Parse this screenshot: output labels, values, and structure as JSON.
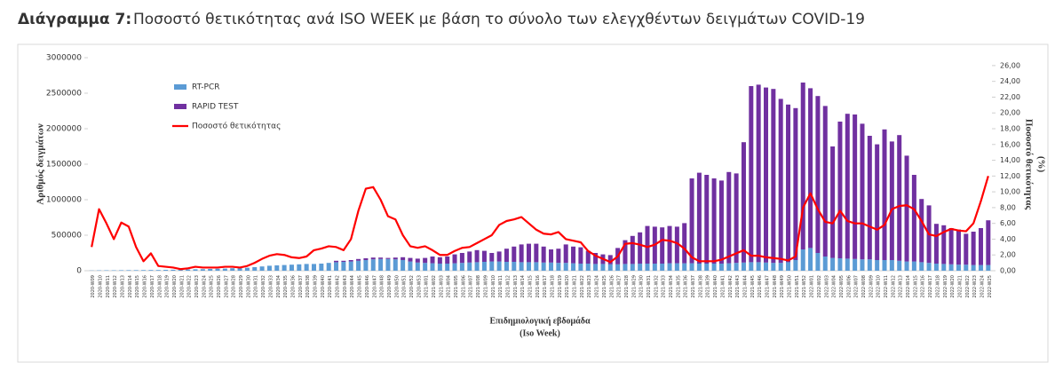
{
  "chart_data": {
    "type": "bar",
    "stacked": true,
    "title_label": "Διάγραμμα 7:",
    "title": "Ποσοστό θετικότητας ανά ISO WEEK με βάση το σύνολο των ελεγχθέντων δειγμάτων COVID-19",
    "ylabel": "Αριθμός δειγμάτων",
    "y2label": [
      "Ποσοστό θετικότητας",
      "(%)"
    ],
    "xlabel": [
      "Επιδημιολογική εβδομάδα",
      "(Iso Week)"
    ],
    "legend": "upper left",
    "ylim": [
      0,
      3000000
    ],
    "yticks": [
      0,
      500000,
      1000000,
      1500000,
      2000000,
      2500000,
      3000000
    ],
    "y2lim": [
      0,
      27
    ],
    "y2ticks": [
      {
        "value": 0,
        "label": "0,00"
      },
      {
        "value": 2,
        "label": "2,00"
      },
      {
        "value": 4,
        "label": "4,00"
      },
      {
        "value": 6,
        "label": "6,00"
      },
      {
        "value": 8,
        "label": "8,00"
      },
      {
        "value": 10,
        "label": "10,00"
      },
      {
        "value": 12,
        "label": "12,00"
      },
      {
        "value": 14,
        "label": "14,00"
      },
      {
        "value": 16,
        "label": "16,00"
      },
      {
        "value": 18,
        "label": "18,00"
      },
      {
        "value": 20,
        "label": "20,00"
      },
      {
        "value": 22,
        "label": "22,00"
      },
      {
        "value": 24,
        "label": "24,00"
      },
      {
        "value": 26,
        "label": "26,00"
      }
    ],
    "categories": [
      "2020-W09",
      "2020-W10",
      "2020-W11",
      "2020-W12",
      "2020-W13",
      "2020-W14",
      "2020-W15",
      "2020-W16",
      "2020-W17",
      "2020-W18",
      "2020-W19",
      "2020-W20",
      "2020-W21",
      "2020-W22",
      "2020-W23",
      "2020-W24",
      "2020-W25",
      "2020-W26",
      "2020-W27",
      "2020-W28",
      "2020-W29",
      "2020-W30",
      "2020-W31",
      "2020-W32",
      "2020-W33",
      "2020-W34",
      "2020-W35",
      "2020-W36",
      "2020-W37",
      "2020-W38",
      "2020-W39",
      "2020-W40",
      "2020-W41",
      "2020-W42",
      "2020-W43",
      "2020-W44",
      "2020-W45",
      "2020-W46",
      "2020-W47",
      "2020-W48",
      "2020-W49",
      "2020-W50",
      "2020-W51",
      "2020-W52",
      "2020-W53",
      "2021-W01",
      "2021-W02",
      "2021-W03",
      "2021-W04",
      "2021-W05",
      "2021-W06",
      "2021-W07",
      "2021-W08",
      "2021-W09",
      "2021-W10",
      "2021-W11",
      "2021-W12",
      "2021-W13",
      "2021-W14",
      "2021-W15",
      "2021-W16",
      "2021-W17",
      "2021-W18",
      "2021-W19",
      "2021-W20",
      "2021-W21",
      "2021-W22",
      "2021-W23",
      "2021-W24",
      "2021-W25",
      "2021-W26",
      "2021-W27",
      "2021-W28",
      "2021-W29",
      "2021-W30",
      "2021-W31",
      "2021-W32",
      "2021-W33",
      "2021-W34",
      "2021-W35",
      "2021-W36",
      "2021-W37",
      "2021-W38",
      "2021-W39",
      "2021-W40",
      "2021-W41",
      "2021-W42",
      "2021-W43",
      "2021-W44",
      "2021-W45",
      "2021-W46",
      "2021-W47",
      "2021-W48",
      "2021-W49",
      "2021-W50",
      "2021-W51",
      "2021-W52",
      "2022-W01",
      "2022-W02",
      "2022-W03",
      "2022-W04",
      "2022-W05",
      "2022-W06",
      "2022-W07",
      "2022-W08",
      "2022-W09",
      "2022-W10",
      "2022-W11",
      "2022-W12",
      "2022-W13",
      "2022-W14",
      "2022-W15",
      "2022-W16",
      "2022-W17",
      "2022-W18",
      "2022-W19",
      "2022-W20",
      "2022-W21",
      "2022-W22",
      "2022-W23",
      "2022-W24",
      "2022-W25"
    ],
    "series": [
      {
        "name": "RT-PCR",
        "color": "#5b9bd5",
        "values": [
          3000,
          5000,
          6000,
          6000,
          7000,
          8000,
          8000,
          9000,
          10000,
          10000,
          12000,
          14000,
          15000,
          18000,
          20000,
          22000,
          25000,
          28000,
          30000,
          35000,
          38000,
          42000,
          50000,
          60000,
          70000,
          75000,
          80000,
          85000,
          90000,
          95000,
          95000,
          100000,
          110000,
          120000,
          125000,
          130000,
          140000,
          150000,
          160000,
          165000,
          165000,
          160000,
          150000,
          130000,
          115000,
          110000,
          105000,
          100000,
          100000,
          105000,
          110000,
          115000,
          120000,
          125000,
          130000,
          130000,
          125000,
          125000,
          120000,
          120000,
          120000,
          115000,
          115000,
          110000,
          110000,
          105000,
          100000,
          100000,
          95000,
          95000,
          90000,
          90000,
          95000,
          95000,
          100000,
          100000,
          100000,
          100000,
          105000,
          105000,
          105000,
          105000,
          100000,
          100000,
          100000,
          100000,
          105000,
          110000,
          115000,
          120000,
          120000,
          115000,
          110000,
          110000,
          120000,
          150000,
          300000,
          320000,
          250000,
          200000,
          180000,
          175000,
          170000,
          165000,
          160000,
          160000,
          150000,
          150000,
          150000,
          140000,
          130000,
          130000,
          120000,
          110000,
          100000,
          95000,
          90000,
          85000,
          85000,
          80000,
          80000,
          80000
        ]
      },
      {
        "name": "RAPID TEST",
        "color": "#7030a0",
        "values": [
          0,
          0,
          0,
          0,
          0,
          0,
          0,
          0,
          0,
          0,
          0,
          0,
          0,
          0,
          0,
          0,
          0,
          0,
          0,
          0,
          0,
          0,
          0,
          0,
          0,
          0,
          0,
          0,
          0,
          0,
          0,
          0,
          0,
          20000,
          15000,
          20000,
          25000,
          25000,
          25000,
          20000,
          15000,
          25000,
          40000,
          50000,
          55000,
          70000,
          95000,
          90000,
          100000,
          125000,
          140000,
          155000,
          170000,
          155000,
          120000,
          140000,
          185000,
          215000,
          250000,
          260000,
          260000,
          225000,
          185000,
          200000,
          260000,
          235000,
          230000,
          180000,
          155000,
          135000,
          130000,
          230000,
          335000,
          395000,
          440000,
          530000,
          520000,
          510000,
          525000,
          515000,
          565000,
          1195000,
          1280000,
          1250000,
          1200000,
          1170000,
          1285000,
          1260000,
          1695000,
          2480000,
          2500000,
          2465000,
          2450000,
          2310000,
          2220000,
          2140000,
          2350000,
          2250000,
          2210000,
          2120000,
          1570000,
          1925000,
          2040000,
          2035000,
          1910000,
          1740000,
          1630000,
          1840000,
          1670000,
          1770000,
          1490000,
          1220000,
          890000,
          810000,
          560000,
          545000,
          510000,
          495000,
          435000,
          470000,
          520000,
          630000
        ]
      },
      {
        "name": "Ποσοστό θετικότητας",
        "color": "#ff0000",
        "type": "line",
        "axis": "y2",
        "values": [
          3.0,
          7.8,
          6.0,
          4.0,
          6.1,
          5.6,
          3.0,
          1.2,
          2.2,
          0.6,
          0.5,
          0.4,
          0.2,
          0.3,
          0.5,
          0.4,
          0.4,
          0.4,
          0.5,
          0.5,
          0.4,
          0.6,
          1.0,
          1.5,
          1.9,
          2.1,
          2.0,
          1.7,
          1.6,
          1.8,
          2.6,
          2.8,
          3.1,
          3.0,
          2.6,
          4.0,
          7.6,
          10.4,
          10.6,
          9.0,
          6.9,
          6.5,
          4.5,
          3.1,
          2.9,
          3.1,
          2.6,
          2.0,
          2.0,
          2.5,
          2.9,
          3.0,
          3.5,
          4.0,
          4.5,
          5.8,
          6.3,
          6.5,
          6.8,
          6.0,
          5.2,
          4.7,
          4.6,
          4.9,
          4.0,
          3.8,
          3.6,
          2.5,
          1.9,
          1.5,
          1.1,
          1.8,
          3.4,
          3.5,
          3.3,
          3.0,
          3.3,
          3.9,
          3.8,
          3.5,
          2.8,
          1.7,
          1.2,
          1.2,
          1.2,
          1.4,
          1.8,
          2.2,
          2.6,
          1.9,
          1.9,
          1.7,
          1.6,
          1.5,
          1.3,
          1.8,
          8.0,
          9.8,
          7.8,
          6.2,
          6.0,
          7.6,
          6.3,
          6.0,
          6.0,
          5.6,
          5.2,
          5.8,
          7.8,
          8.2,
          8.3,
          7.8,
          6.3,
          4.6,
          4.4,
          4.9,
          5.3,
          5.1,
          5.0,
          6.0,
          8.8,
          12.0
        ]
      }
    ]
  }
}
